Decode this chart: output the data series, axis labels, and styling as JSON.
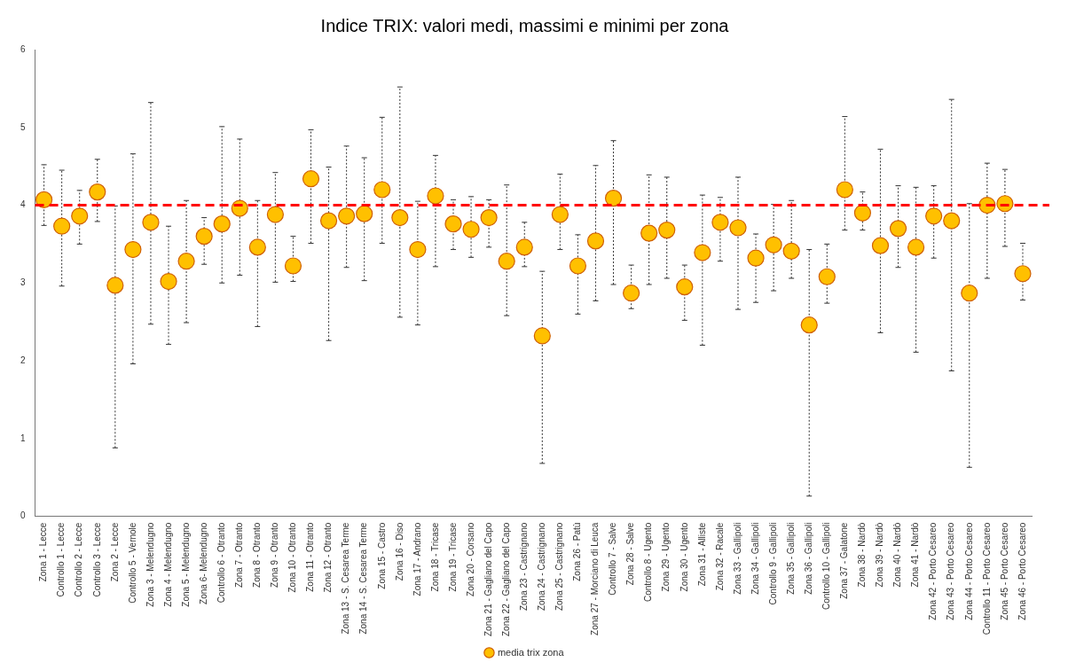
{
  "chart_data": {
    "type": "scatter",
    "title": "Indice TRIX: valori medi, massimi e minimi per zona",
    "categories": [
      "Zona 1 - Lecce",
      "Controllo 1 - Lecce",
      "Controllo 2 - Lecce",
      "Controllo 3 - Lecce",
      "Zona 2 - Lecce",
      "Controllo 5 - Vernole",
      "Zona 3 - Melendugno",
      "Zona 4 - Melendugno",
      "Zona 5 - Melendugno",
      "Zona 6- Melendugno",
      "Controllo 6 - Otranto",
      "Zona 7 - Otranto",
      "Zona 8 - Otranto",
      "Zona 9 - Otranto",
      "Zona 10 - Otranto",
      "Zona 11 - Otranto",
      "Zona 12 - Otranto",
      "Zona 13 - S. Cesarea Terme",
      "Zona 14 - S. Cesarea Terme",
      "Zona 15 - Castro",
      "Zona 16 - Diso",
      "Zona 17 - Andrano",
      "Zona 18 - Tricase",
      "Zona 19 - Tricase",
      "Zona 20 - Corsano",
      "Zona 21 - Gagliano del Capo",
      "Zona 22 - Gagliano del Capo",
      "Zona 23 - Castrignano",
      "Zona 24 - Castrignano",
      "Zona 25 - Castrignano",
      "Zona 26 - Patù",
      "Zona 27 - Morciano di Leuca",
      "Controllo 7 - Salve",
      "Zona 28 - Salve",
      "Controllo 8 - Ugento",
      "Zona 29 - Ugento",
      "Zona 30 - Ugento",
      "Zona 31 - Alliste",
      "Zona 32 - Racale",
      "Zona 33 - Gallipoli",
      "Zona 34 - Gallipoli",
      "Controllo 9 - Gallipoli",
      "Zona 35 - Gallipoli",
      "Zona 36 - Gallipoli",
      "Controllo 10 - Gallipoli",
      "Zona 37 - Galatone",
      "Zona 38 - Nardò",
      "Zona 39 - Nardò",
      "Zona 40 - Nardò",
      "Zona 41 - Nardò",
      "Zona 42 - Porto Cesareo",
      "Zona 43 - Porto Cesareo",
      "Zona 44 - Porto Cesareo",
      "Controllo 11 - Porto Cesareo",
      "Zona 45 - Porto Cesareo",
      "Zona 46 - Porto Cesareo"
    ],
    "series": [
      {
        "name": "media trix zona",
        "color": "#ffc000",
        "values": [
          4.07,
          3.73,
          3.86,
          4.17,
          2.97,
          3.43,
          3.78,
          3.02,
          3.28,
          3.6,
          3.76,
          3.96,
          3.46,
          3.88,
          3.22,
          4.34,
          3.8,
          3.86,
          3.89,
          4.2,
          3.84,
          3.43,
          4.12,
          3.76,
          3.69,
          3.84,
          3.28,
          3.46,
          2.32,
          3.88,
          3.22,
          3.54,
          4.09,
          2.87,
          3.64,
          3.68,
          2.95,
          3.39,
          3.78,
          3.71,
          3.32,
          3.49,
          3.41,
          2.46,
          3.08,
          4.2,
          3.9,
          3.48,
          3.7,
          3.46,
          3.86,
          3.8,
          2.87,
          4.0,
          4.02,
          3.12
        ],
        "errors": [
          [
            3.74,
            4.52
          ],
          [
            2.96,
            4.45
          ],
          [
            3.5,
            4.19
          ],
          [
            3.79,
            4.59
          ],
          [
            0.88,
            3.99
          ],
          [
            1.96,
            4.66
          ],
          [
            2.47,
            5.32
          ],
          [
            2.21,
            3.73
          ],
          [
            2.49,
            4.06
          ],
          [
            3.24,
            3.84
          ],
          [
            3.0,
            5.01
          ],
          [
            3.1,
            4.85
          ],
          [
            2.44,
            4.06
          ],
          [
            3.01,
            4.42
          ],
          [
            3.02,
            3.6
          ],
          [
            3.51,
            4.97
          ],
          [
            2.26,
            4.49
          ],
          [
            3.2,
            4.76
          ],
          [
            3.03,
            4.61
          ],
          [
            3.51,
            5.13
          ],
          [
            2.56,
            5.52
          ],
          [
            2.46,
            4.05
          ],
          [
            3.21,
            4.64
          ],
          [
            3.43,
            4.07
          ],
          [
            3.33,
            4.11
          ],
          [
            3.46,
            4.07
          ],
          [
            2.58,
            4.26
          ],
          [
            3.21,
            3.78
          ],
          [
            0.68,
            3.15
          ],
          [
            3.43,
            4.4
          ],
          [
            2.6,
            3.62
          ],
          [
            2.77,
            4.51
          ],
          [
            2.98,
            4.83
          ],
          [
            2.67,
            3.23
          ],
          [
            2.98,
            4.39
          ],
          [
            3.06,
            4.36
          ],
          [
            2.52,
            3.23
          ],
          [
            2.2,
            4.13
          ],
          [
            3.28,
            4.1
          ],
          [
            2.66,
            4.36
          ],
          [
            2.75,
            3.63
          ],
          [
            2.9,
            4.01
          ],
          [
            3.06,
            4.06
          ],
          [
            0.26,
            3.43
          ],
          [
            2.74,
            3.5
          ],
          [
            3.68,
            5.14
          ],
          [
            3.68,
            4.17
          ],
          [
            2.36,
            4.72
          ],
          [
            3.2,
            4.25
          ],
          [
            2.11,
            4.23
          ],
          [
            3.32,
            4.25
          ],
          [
            1.87,
            5.36
          ],
          [
            0.63,
            4.02
          ],
          [
            3.06,
            4.54
          ],
          [
            3.47,
            4.46
          ],
          [
            2.78,
            3.51
          ]
        ]
      }
    ],
    "ylim": [
      0,
      6
    ],
    "yticks": [
      0,
      1,
      2,
      3,
      4,
      5,
      6
    ],
    "ref_lines": [
      {
        "axis": "y",
        "value": 4,
        "color": "#ff0000",
        "line_style": "dashed"
      }
    ],
    "marker": "circle",
    "legend": "bottom",
    "grid": false
  }
}
